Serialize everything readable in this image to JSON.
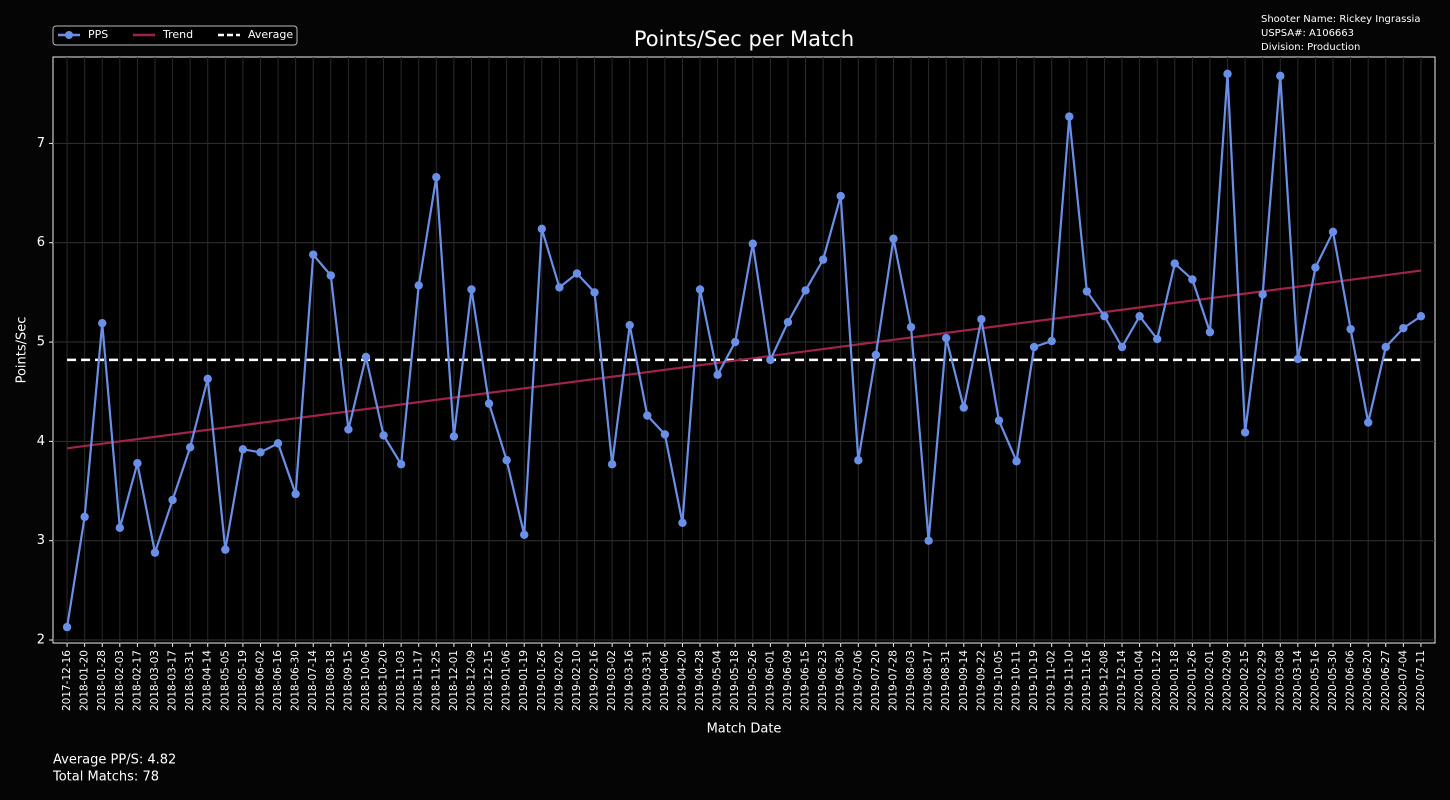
{
  "chart_data": {
    "type": "line",
    "title": "Points/Sec per Match",
    "x_label": "Match Date",
    "y_label": "Points/Sec",
    "info": [
      "Shooter Name: Rickey Ingrassia",
      "USPSA#: A106663",
      "Division: Production"
    ],
    "footer": [
      "Average PP/S: 4.82",
      "Total Matchs: 78"
    ],
    "legend": "upper left",
    "grid": true,
    "categories": [
      "2017-12-16",
      "2018-01-20",
      "2018-01-28",
      "2018-02-03",
      "2018-02-17",
      "2018-03-03",
      "2018-03-17",
      "2018-03-31",
      "2018-04-14",
      "2018-05-05",
      "2018-05-19",
      "2018-06-02",
      "2018-06-16",
      "2018-06-30",
      "2018-07-14",
      "2018-08-18",
      "2018-09-15",
      "2018-10-06",
      "2018-10-20",
      "2018-11-03",
      "2018-11-17",
      "2018-11-25",
      "2018-12-01",
      "2018-12-09",
      "2018-12-15",
      "2019-01-06",
      "2019-01-19",
      "2019-01-26",
      "2019-02-02",
      "2019-02-10",
      "2019-02-16",
      "2019-03-02",
      "2019-03-16",
      "2019-03-31",
      "2019-04-06",
      "2019-04-20",
      "2019-04-28",
      "2019-05-04",
      "2019-05-18",
      "2019-05-26",
      "2019-06-01",
      "2019-06-09",
      "2019-06-15",
      "2019-06-23",
      "2019-06-30",
      "2019-07-06",
      "2019-07-20",
      "2019-07-28",
      "2019-08-03",
      "2019-08-17",
      "2019-08-31",
      "2019-09-14",
      "2019-09-22",
      "2019-10-05",
      "2019-10-11",
      "2019-10-19",
      "2019-11-02",
      "2019-11-10",
      "2019-11-16",
      "2019-12-08",
      "2019-12-14",
      "2020-01-04",
      "2020-01-12",
      "2020-01-18",
      "2020-01-26",
      "2020-02-01",
      "2020-02-09",
      "2020-02-15",
      "2020-02-29",
      "2020-03-08",
      "2020-03-14",
      "2020-05-16",
      "2020-05-30",
      "2020-06-06",
      "2020-06-20",
      "2020-06-27",
      "2020-07-04",
      "2020-07-11"
    ],
    "series": [
      {
        "name": "PPS",
        "color": "#6a8fe6",
        "values": [
          2.13,
          3.24,
          5.19,
          3.13,
          3.78,
          2.88,
          3.41,
          3.94,
          4.63,
          2.91,
          3.92,
          3.89,
          3.98,
          3.47,
          5.88,
          5.67,
          4.12,
          4.85,
          4.06,
          3.77,
          5.57,
          6.66,
          4.05,
          5.53,
          4.38,
          3.81,
          3.06,
          6.14,
          5.55,
          5.69,
          5.5,
          3.77,
          5.17,
          4.26,
          4.07,
          3.18,
          5.53,
          4.67,
          5.0,
          5.99,
          4.82,
          5.2,
          5.52,
          5.83,
          6.47,
          3.81,
          4.87,
          6.04,
          5.15,
          3.0,
          5.04,
          4.34,
          5.23,
          4.21,
          3.8,
          4.95,
          5.01,
          7.27,
          5.51,
          5.26,
          4.95,
          5.26,
          5.03,
          5.79,
          5.63,
          5.1,
          7.7,
          4.09,
          5.48,
          7.68,
          4.83,
          5.75,
          6.11,
          5.13,
          4.19,
          4.95,
          5.14,
          5.26
        ]
      }
    ],
    "trend": {
      "name": "Trend",
      "color": "#a0234a",
      "start": 3.93,
      "end": 5.72
    },
    "average": {
      "name": "Average",
      "color": "#ffffff",
      "value": 4.82
    },
    "ylim": [
      1.97,
      7.87
    ],
    "yticks": [
      2,
      3,
      4,
      5,
      6,
      7
    ]
  }
}
